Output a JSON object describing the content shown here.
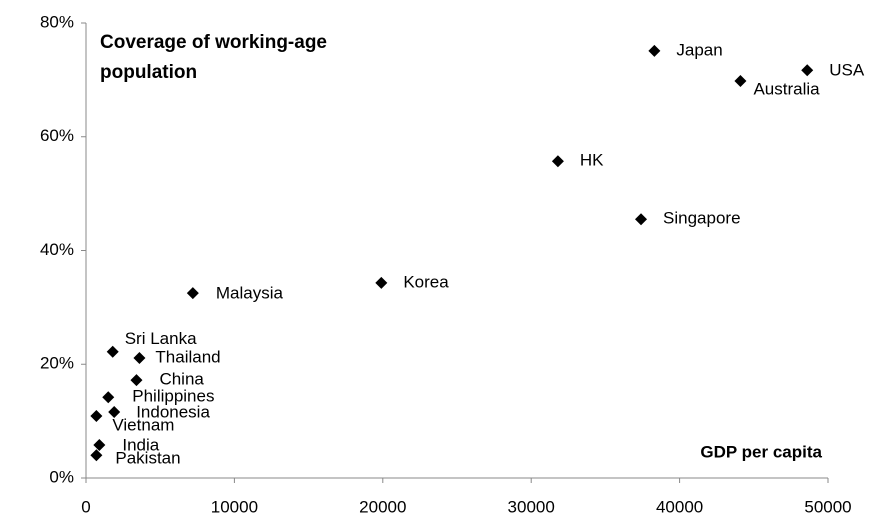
{
  "chart_data": {
    "type": "scatter",
    "title": "Coverage of working-age population",
    "x_label": "GDP per capita",
    "series": [
      {
        "color": "#000000",
        "labels": [
          "Japan",
          "USA",
          "Australia",
          "HK",
          "Singapore",
          "Korea",
          "Malaysia",
          "Sri Lanka",
          "Thailand",
          "China",
          "Philippines",
          "Indonesia",
          "Vietnam",
          "India",
          "Pakistan"
        ],
        "x": [
          38300,
          48600,
          44100,
          31800,
          37400,
          19900,
          7200,
          1800,
          3600,
          3400,
          1500,
          1900,
          700,
          900,
          700
        ],
        "values": [
          75.1,
          71.7,
          69.8,
          55.7,
          45.5,
          34.3,
          32.5,
          22.2,
          21.1,
          17.2,
          14.2,
          11.6,
          10.9,
          5.8,
          4.0
        ]
      }
    ],
    "xlim": [
      0,
      50000
    ],
    "xticks": [
      0,
      10000,
      20000,
      30000,
      40000,
      50000
    ],
    "ylim": [
      0,
      80
    ],
    "yticks": [
      {
        "value": 0,
        "label": "0%"
      },
      {
        "value": 20,
        "label": "20%"
      },
      {
        "value": 40,
        "label": "40%"
      },
      {
        "value": 60,
        "label": "60%"
      },
      {
        "value": 80,
        "label": "80%"
      }
    ]
  }
}
